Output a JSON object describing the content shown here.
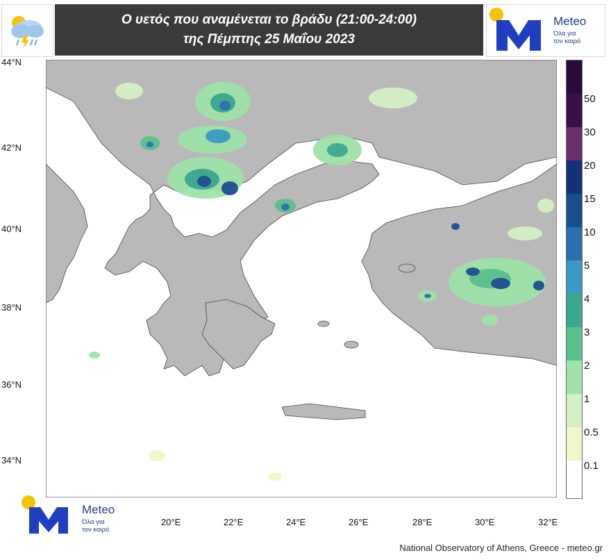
{
  "header": {
    "title_line1": "Ο υετός που αναμένεται το βράδυ (21:00-24:00)",
    "title_line2": "της Πέμπτης 25 Μαΐου 2023",
    "weather_icon": "rain-cloud-icon"
  },
  "logo": {
    "brand": "Meteo",
    "tagline_line1": "Όλα για",
    "tagline_line2": "τον καιρό"
  },
  "map": {
    "latitude_labels": [
      "44°N",
      "42°N",
      "40°N",
      "38°N",
      "36°N",
      "34°N"
    ],
    "longitude_labels": [
      "20°E",
      "22°E",
      "24°E",
      "26°E",
      "28°E",
      "30°E",
      "32°E"
    ],
    "colors": {
      "sea": "#ffffff",
      "land": "#b9b9b9",
      "borders": "#222222"
    }
  },
  "legend": {
    "labels": [
      "50",
      "30",
      "20",
      "15",
      "10",
      "5",
      "4",
      "3",
      "2",
      "1",
      "0.5",
      "0.1"
    ],
    "colors": [
      "#3b0f4a",
      "#6b2f6b",
      "#12327a",
      "#1a4f8f",
      "#2b6fb0",
      "#3a9bc2",
      "#3aa88e",
      "#59c28c",
      "#9ee3a8",
      "#d4f0c5",
      "#f1f7c8",
      "#ffffff"
    ]
  },
  "credit": "National Observatory of Athens, Greece - meteo.gr"
}
